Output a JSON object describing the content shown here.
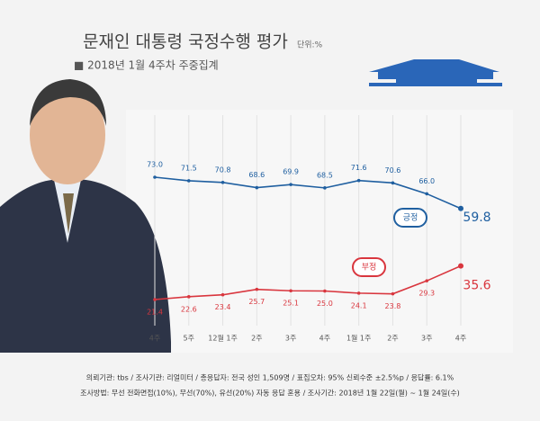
{
  "chart_data": {
    "type": "line",
    "title": "문재인 대통령 국정수행 평가",
    "unit": "단위:%",
    "subtitle": "■ 2018년 1월 4주차 주중집계",
    "categories": [
      "4주",
      "5주",
      "12월 1주",
      "2주",
      "3주",
      "4주",
      "1월 1주",
      "2주",
      "3주",
      "4주"
    ],
    "series": [
      {
        "name": "긍정",
        "color": "#1f5fa0",
        "values": [
          73.0,
          71.5,
          70.8,
          68.6,
          69.9,
          68.5,
          71.6,
          70.6,
          66.0,
          59.8
        ],
        "value_labels": [
          "73.0",
          "71.5",
          "70.8",
          "68.6",
          "69.9",
          "68.5",
          "71.6",
          "70.6",
          "66.0",
          "59.8"
        ]
      },
      {
        "name": "부정",
        "color": "#d9363e",
        "values": [
          21.4,
          22.6,
          23.4,
          25.7,
          25.1,
          25.0,
          24.1,
          23.8,
          29.3,
          35.6
        ],
        "value_labels": [
          "21.4",
          "22.6",
          "23.4",
          "25.7",
          "25.1",
          "25.0",
          "24.1",
          "23.8",
          "29.3",
          "35.6"
        ]
      }
    ],
    "notes": [
      "의뢰기관: tbs / 조사기관: 리얼미터 / 총응답자: 전국 성인 1,509명 / 표집오차: 95% 신뢰수준 ±2.5%p / 응답률: 6.1%",
      "조사방법: 무선 전화면접(10%), 무선(70%), 유선(20%) 자동 응답 혼용 / 조사기간: 2018년 1월 22일(월) ~ 1월 24일(수)"
    ]
  }
}
